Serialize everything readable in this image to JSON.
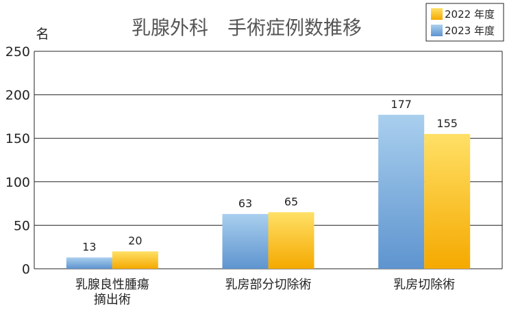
{
  "colors": {
    "series_2022_top": "#FFE066",
    "series_2022_bottom": "#F5A900",
    "series_2023_top": "#A9CFEE",
    "series_2023_bottom": "#5E94CF",
    "axis": "#222222",
    "grid": "#222222"
  },
  "chart_data": {
    "type": "bar",
    "title": "乳腺外科　手術症例数推移",
    "ylabel": "名",
    "xlabel": "",
    "ylim": [
      0,
      250
    ],
    "yticks": [
      0,
      50,
      100,
      150,
      200,
      250
    ],
    "grid": true,
    "legend_position": "top-right",
    "categories": [
      [
        "乳腺良性腫瘍",
        "摘出術"
      ],
      [
        "乳房部分切除術"
      ],
      [
        "乳房切除術"
      ]
    ],
    "series": [
      {
        "name": "2023 年度",
        "color": "blue",
        "values": [
          13,
          63,
          177
        ]
      },
      {
        "name": "2022 年度",
        "color": "orange",
        "values": [
          20,
          65,
          155
        ]
      }
    ],
    "legend": [
      "2022 年度",
      "2023 年度"
    ]
  }
}
